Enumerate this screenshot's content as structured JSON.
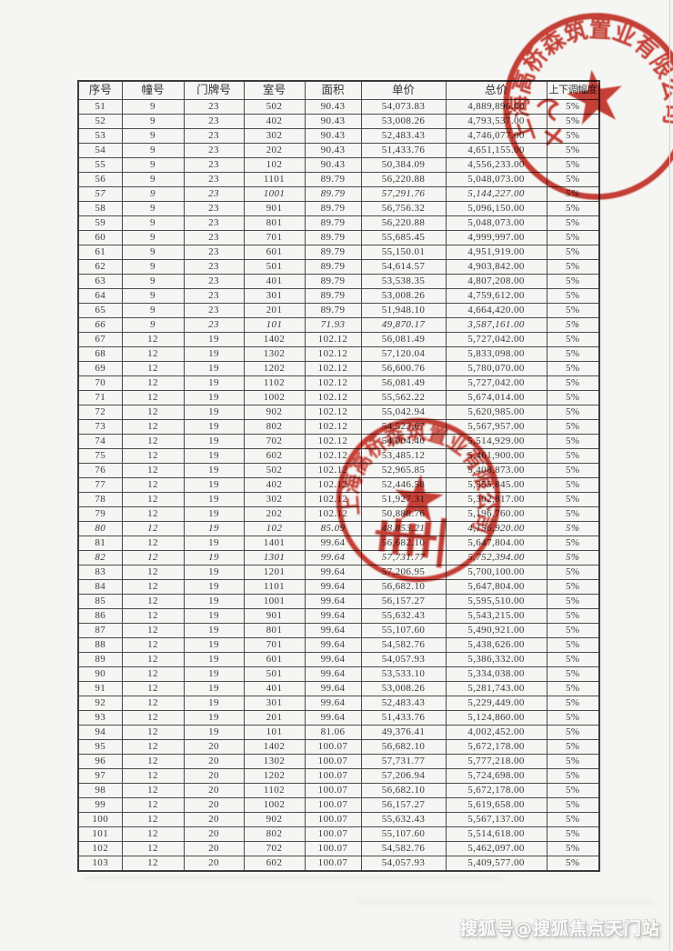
{
  "page": {
    "background": "#f5f5f3",
    "text_color": "#3a3a3a",
    "stamp_color": "#c5281c"
  },
  "table": {
    "headers": [
      "序号",
      "幢号",
      "门牌号",
      "室号",
      "面积",
      "单价",
      "总价",
      "上下调幅度"
    ],
    "italic_serials": [
      57,
      66,
      80,
      82
    ],
    "rows": [
      [
        "51",
        "9",
        "23",
        "502",
        "90.43",
        "54,073.83",
        "4,889,896.00",
        "5%"
      ],
      [
        "52",
        "9",
        "23",
        "402",
        "90.43",
        "53,008.26",
        "4,793,537.00",
        "5%"
      ],
      [
        "53",
        "9",
        "23",
        "302",
        "90.43",
        "52,483.43",
        "4,746,077.00",
        "5%"
      ],
      [
        "54",
        "9",
        "23",
        "202",
        "90.43",
        "51,433.76",
        "4,651,155.00",
        "5%"
      ],
      [
        "55",
        "9",
        "23",
        "102",
        "90.43",
        "50,384.09",
        "4,556,233.00",
        "5%"
      ],
      [
        "56",
        "9",
        "23",
        "1101",
        "89.79",
        "56,220.88",
        "5,048,073.00",
        "5%"
      ],
      [
        "57",
        "9",
        "23",
        "1001",
        "89.79",
        "57,291.76",
        "5,144,227.00",
        "5%"
      ],
      [
        "58",
        "9",
        "23",
        "901",
        "89.79",
        "56,756.32",
        "5,096,150.00",
        "5%"
      ],
      [
        "59",
        "9",
        "23",
        "801",
        "89.79",
        "56,220.88",
        "5,048,073.00",
        "5%"
      ],
      [
        "60",
        "9",
        "23",
        "701",
        "89.79",
        "55,685.45",
        "4,999,997.00",
        "5%"
      ],
      [
        "61",
        "9",
        "23",
        "601",
        "89.79",
        "55,150.01",
        "4,951,919.00",
        "5%"
      ],
      [
        "62",
        "9",
        "23",
        "501",
        "89.79",
        "54,614.57",
        "4,903,842.00",
        "5%"
      ],
      [
        "63",
        "9",
        "23",
        "401",
        "89.79",
        "53,538.35",
        "4,807,208.00",
        "5%"
      ],
      [
        "64",
        "9",
        "23",
        "301",
        "89.79",
        "53,008.26",
        "4,759,612.00",
        "5%"
      ],
      [
        "65",
        "9",
        "23",
        "201",
        "89.79",
        "51,948.10",
        "4,664,420.00",
        "5%"
      ],
      [
        "66",
        "9",
        "23",
        "101",
        "71.93",
        "49,870.17",
        "3,587,161.00",
        "5%"
      ],
      [
        "67",
        "12",
        "19",
        "1402",
        "102.12",
        "56,081.49",
        "5,727,042.00",
        "5%"
      ],
      [
        "68",
        "12",
        "19",
        "1302",
        "102.12",
        "57,120.04",
        "5,833,098.00",
        "5%"
      ],
      [
        "69",
        "12",
        "19",
        "1202",
        "102.12",
        "56,600.76",
        "5,780,070.00",
        "5%"
      ],
      [
        "70",
        "12",
        "19",
        "1102",
        "102.12",
        "56,081.49",
        "5,727,042.00",
        "5%"
      ],
      [
        "71",
        "12",
        "19",
        "1002",
        "102.12",
        "55,562.22",
        "5,674,014.00",
        "5%"
      ],
      [
        "72",
        "12",
        "19",
        "902",
        "102.12",
        "55,042.94",
        "5,620,985.00",
        "5%"
      ],
      [
        "73",
        "12",
        "19",
        "802",
        "102.12",
        "54,523.67",
        "5,567,957.00",
        "5%"
      ],
      [
        "74",
        "12",
        "19",
        "702",
        "102.12",
        "54,004.40",
        "5,514,929.00",
        "5%"
      ],
      [
        "75",
        "12",
        "19",
        "602",
        "102.12",
        "53,485.12",
        "5,461,900.00",
        "5%"
      ],
      [
        "76",
        "12",
        "19",
        "502",
        "102.12",
        "52,965.85",
        "5,408,873.00",
        "5%"
      ],
      [
        "77",
        "12",
        "19",
        "402",
        "102.12",
        "52,446.58",
        "5,355,845.00",
        "5%"
      ],
      [
        "78",
        "12",
        "19",
        "302",
        "102.12",
        "51,927.31",
        "5,302,817.00",
        "5%"
      ],
      [
        "79",
        "12",
        "19",
        "202",
        "102.12",
        "50,888.76",
        "5,196,760.00",
        "5%"
      ],
      [
        "80",
        "12",
        "19",
        "102",
        "85.09",
        "48,853.21",
        "4,156,920.00",
        "5%"
      ],
      [
        "81",
        "12",
        "19",
        "1401",
        "99.64",
        "56,682.10",
        "5,647,804.00",
        "5%"
      ],
      [
        "82",
        "12",
        "19",
        "1301",
        "99.64",
        "57,731.77",
        "5,752,394.00",
        "5%"
      ],
      [
        "83",
        "12",
        "19",
        "1201",
        "99.64",
        "57,206.95",
        "5,700,100.00",
        "5%"
      ],
      [
        "84",
        "12",
        "19",
        "1101",
        "99.64",
        "56,682.10",
        "5,647,804.00",
        "5%"
      ],
      [
        "85",
        "12",
        "19",
        "1001",
        "99.64",
        "56,157.27",
        "5,595,510.00",
        "5%"
      ],
      [
        "86",
        "12",
        "19",
        "901",
        "99.64",
        "55,632.43",
        "5,543,215.00",
        "5%"
      ],
      [
        "87",
        "12",
        "19",
        "801",
        "99.64",
        "55,107.60",
        "5,490,921.00",
        "5%"
      ],
      [
        "88",
        "12",
        "19",
        "701",
        "99.64",
        "54,582.76",
        "5,438,626.00",
        "5%"
      ],
      [
        "89",
        "12",
        "19",
        "601",
        "99.64",
        "54,057.93",
        "5,386,332.00",
        "5%"
      ],
      [
        "90",
        "12",
        "19",
        "501",
        "99.64",
        "53,533.10",
        "5,334,038.00",
        "5%"
      ],
      [
        "91",
        "12",
        "19",
        "401",
        "99.64",
        "53,008.26",
        "5,281,743.00",
        "5%"
      ],
      [
        "92",
        "12",
        "19",
        "301",
        "99.64",
        "52,483.43",
        "5,229,449.00",
        "5%"
      ],
      [
        "93",
        "12",
        "19",
        "201",
        "99.64",
        "51,433.76",
        "5,124,860.00",
        "5%"
      ],
      [
        "94",
        "12",
        "19",
        "101",
        "81.06",
        "49,376.41",
        "4,002,452.00",
        "5%"
      ],
      [
        "95",
        "12",
        "20",
        "1402",
        "100.07",
        "56,682.10",
        "5,672,178.00",
        "5%"
      ],
      [
        "96",
        "12",
        "20",
        "1302",
        "100.07",
        "57,731.77",
        "5,777,218.00",
        "5%"
      ],
      [
        "97",
        "12",
        "20",
        "1202",
        "100.07",
        "57,206.94",
        "5,724,698.00",
        "5%"
      ],
      [
        "98",
        "12",
        "20",
        "1102",
        "100.07",
        "56,682.10",
        "5,672,178.00",
        "5%"
      ],
      [
        "99",
        "12",
        "20",
        "1002",
        "100.07",
        "56,157.27",
        "5,619,658.00",
        "5%"
      ],
      [
        "100",
        "12",
        "20",
        "902",
        "100.07",
        "55,632.43",
        "5,567,137.00",
        "5%"
      ],
      [
        "101",
        "12",
        "20",
        "802",
        "100.07",
        "55,107.60",
        "5,514,618.00",
        "5%"
      ],
      [
        "102",
        "12",
        "20",
        "702",
        "100.07",
        "54,582.76",
        "5,462,097.00",
        "5%"
      ],
      [
        "103",
        "12",
        "20",
        "602",
        "100.07",
        "54,057.93",
        "5,409,577.00",
        "5%"
      ]
    ]
  },
  "stamps": {
    "top": {
      "text": "上海高桥森筑置业有限公司"
    },
    "middle": {
      "text": "上海高桥森筑置业有限公司"
    }
  },
  "watermark": {
    "text": "搜狐号@搜狐焦点天门站"
  }
}
